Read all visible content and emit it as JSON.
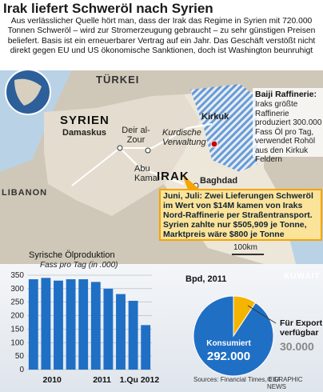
{
  "header": {
    "title": "Irak liefert Schweröl nach Syrien",
    "intro": "Aus verlässlicher Quelle hört man, dass der Irak das Regime in Syrien mit 720.000 Tonnen Schweröl – wird zur Stromerzeugung gebraucht – zu sehr günstigen Preisen beliefert. Basis ist ein erneuerbarer Vertrag auf ein Jahr. Das Geschäft verstößt nicht direkt gegen EU und US ökonomische Sanktionen, doch ist Washington beunruhigt"
  },
  "map": {
    "labels": {
      "turkei": "TÜRKEI",
      "syrien": "SYRIEN",
      "damaskus": "Damaskus",
      "deir": "Deir al-Zour",
      "abukamal": "Abu Kamal",
      "libanon": "LIBANON",
      "irak": "IRAK",
      "baghdad": "Baghdad",
      "kirkuk": "Kirkuk",
      "kurdish": "Kurdische Verwaltung",
      "kuwait": "KUWAIT",
      "scale": "100km"
    }
  },
  "baiji": {
    "title": "Baiji Raffinerie:",
    "text": "Iraks größte Raffinerie produziert 300.000 Fass Öl pro Tag, verwendet Rohöl aus den Kirkuk Feldern"
  },
  "callout": {
    "text": "Juni, Juli: Zwei Lieferungen Schweröl im Wert von $14M kamen von Iraks Nord-Raffinerie per Straßentransport. Syrien zahlte nur $505,909 je Tonne, Marktpreis wäre $800 je Tonne"
  },
  "chart_data": [
    {
      "type": "bar",
      "title": "Syrische Ölproduktion",
      "subtitle": "Fass pro Tag (in .000)",
      "categories": [
        "2010",
        null,
        null,
        null,
        "2011",
        null,
        null,
        null,
        "1.Qu 2012",
        null
      ],
      "values": [
        335,
        340,
        330,
        335,
        335,
        325,
        300,
        280,
        255,
        165
      ],
      "color": "#1f6fc5",
      "ylim": [
        0,
        350
      ],
      "yticks": [
        0,
        50,
        100,
        150,
        200,
        250,
        300,
        350
      ],
      "grid": true
    },
    {
      "type": "pie",
      "title": "Bpd, 2011",
      "categories": [
        "Konsumiert",
        "Für Export verfügbar"
      ],
      "values": [
        292000,
        30000
      ],
      "value_labels": [
        "292.000",
        "30.000"
      ],
      "colors": [
        "#1f6fc5",
        "#f5b400"
      ]
    }
  ],
  "footer": {
    "sources": "Sources: Financial Times, EIU",
    "credit": "© GRAPHIC NEWS"
  }
}
